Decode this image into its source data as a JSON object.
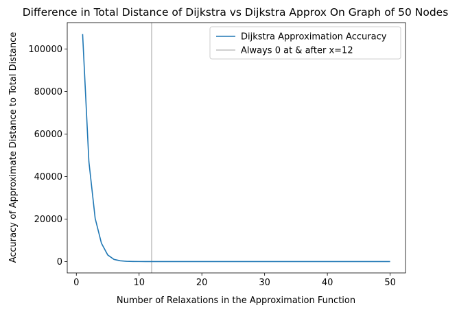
{
  "chart_data": {
    "type": "line",
    "title": "Difference in Total Distance of Dijkstra vs Dijkstra Approx On Graph of 50 Nodes",
    "xlabel": "Number of Relaxations in the Approximation Function",
    "ylabel": "Accuracy of Approximate Distance to Total Distance",
    "xlim": [
      -1.45,
      52.45
    ],
    "ylim": [
      -5350,
      112400
    ],
    "xticks": [
      0,
      10,
      20,
      30,
      40,
      50
    ],
    "xtick_labels": [
      "0",
      "10",
      "20",
      "30",
      "40",
      "50"
    ],
    "yticks": [
      0,
      20000,
      40000,
      60000,
      80000,
      100000
    ],
    "ytick_labels": [
      "0",
      "20000",
      "40000",
      "60000",
      "80000",
      "100000"
    ],
    "grid": false,
    "legend_position": "top-right",
    "series": [
      {
        "name": "Dijkstra Approximation Accuracy",
        "color": "#1f77b4",
        "x": [
          1,
          2,
          3,
          4,
          5,
          6,
          7,
          8,
          9,
          10,
          11,
          12,
          13,
          14,
          15,
          16,
          17,
          18,
          19,
          20,
          21,
          22,
          23,
          24,
          25,
          26,
          27,
          28,
          29,
          30,
          31,
          32,
          33,
          34,
          35,
          36,
          37,
          38,
          39,
          40,
          41,
          42,
          43,
          44,
          45,
          46,
          47,
          48,
          49,
          50
        ],
        "y": [
          107000,
          47000,
          20300,
          8600,
          3100,
          1000,
          350,
          120,
          40,
          15,
          5,
          0,
          0,
          0,
          0,
          0,
          0,
          0,
          0,
          0,
          0,
          0,
          0,
          0,
          0,
          0,
          0,
          0,
          0,
          0,
          0,
          0,
          0,
          0,
          0,
          0,
          0,
          0,
          0,
          0,
          0,
          0,
          0,
          0,
          0,
          0,
          0,
          0,
          0,
          0
        ]
      }
    ],
    "vline": {
      "name": "Always 0 at & after x=12",
      "x": 12,
      "color": "#bfbfbf"
    }
  }
}
